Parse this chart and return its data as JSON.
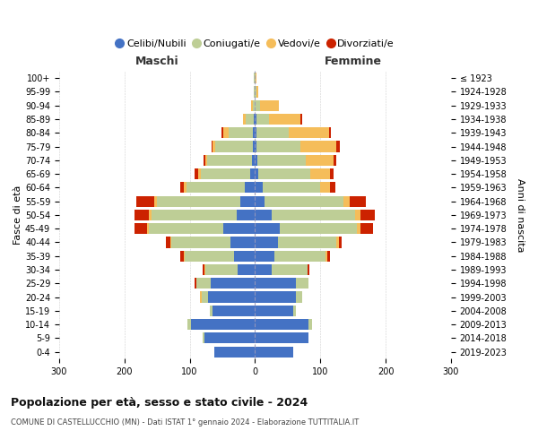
{
  "age_groups": [
    "0-4",
    "5-9",
    "10-14",
    "15-19",
    "20-24",
    "25-29",
    "30-34",
    "35-39",
    "40-44",
    "45-49",
    "50-54",
    "55-59",
    "60-64",
    "65-69",
    "70-74",
    "75-79",
    "80-84",
    "85-89",
    "90-94",
    "95-99",
    "100+"
  ],
  "birth_years": [
    "2019-2023",
    "2014-2018",
    "2009-2013",
    "2004-2008",
    "1999-2003",
    "1994-1998",
    "1989-1993",
    "1984-1988",
    "1979-1983",
    "1974-1978",
    "1969-1973",
    "1964-1968",
    "1959-1963",
    "1954-1958",
    "1949-1953",
    "1944-1948",
    "1939-1943",
    "1934-1938",
    "1929-1933",
    "1924-1928",
    "≤ 1923"
  ],
  "maschi_celibi": [
    63,
    78,
    98,
    65,
    72,
    68,
    26,
    32,
    38,
    48,
    28,
    22,
    15,
    8,
    5,
    3,
    3,
    2,
    0,
    0,
    0
  ],
  "maschi_coniugati": [
    0,
    2,
    5,
    4,
    10,
    22,
    50,
    75,
    90,
    115,
    130,
    128,
    90,
    75,
    68,
    58,
    38,
    12,
    4,
    2,
    2
  ],
  "maschi_vedovi": [
    0,
    0,
    0,
    0,
    2,
    0,
    1,
    2,
    2,
    2,
    4,
    4,
    4,
    4,
    3,
    4,
    8,
    5,
    2,
    0,
    0
  ],
  "maschi_divorziati": [
    0,
    0,
    0,
    0,
    0,
    3,
    3,
    5,
    6,
    20,
    22,
    28,
    5,
    5,
    3,
    2,
    2,
    0,
    0,
    0,
    0
  ],
  "femmine_nubili": [
    58,
    82,
    82,
    58,
    62,
    62,
    25,
    30,
    35,
    38,
    25,
    15,
    12,
    5,
    3,
    2,
    2,
    2,
    0,
    0,
    0
  ],
  "femmine_coniugate": [
    0,
    0,
    5,
    5,
    10,
    20,
    55,
    78,
    90,
    118,
    128,
    120,
    88,
    80,
    75,
    68,
    50,
    20,
    8,
    2,
    1
  ],
  "femmine_vedove": [
    0,
    0,
    0,
    0,
    0,
    0,
    1,
    2,
    3,
    5,
    8,
    10,
    15,
    30,
    42,
    55,
    62,
    48,
    28,
    3,
    1
  ],
  "femmine_divorziate": [
    0,
    0,
    0,
    0,
    0,
    0,
    2,
    5,
    5,
    20,
    22,
    25,
    8,
    5,
    5,
    5,
    2,
    2,
    0,
    0,
    0
  ],
  "colors": {
    "celibi_nubili": "#4472C4",
    "coniugati": "#BECE96",
    "vedovi": "#F5BD5A",
    "divorziati": "#CC2200"
  },
  "xlim": 300,
  "title": "Popolazione per età, sesso e stato civile - 2024",
  "subtitle": "COMUNE DI CASTELLUCCHIO (MN) - Dati ISTAT 1° gennaio 2024 - Elaborazione TUTTITALIA.IT",
  "header_left": "Maschi",
  "header_right": "Femmine",
  "ylabel_left": "Fasce di età",
  "ylabel_right": "Anni di nascita",
  "legend_labels": [
    "Celibi/Nubili",
    "Coniugati/e",
    "Vedovi/e",
    "Divorziati/e"
  ]
}
